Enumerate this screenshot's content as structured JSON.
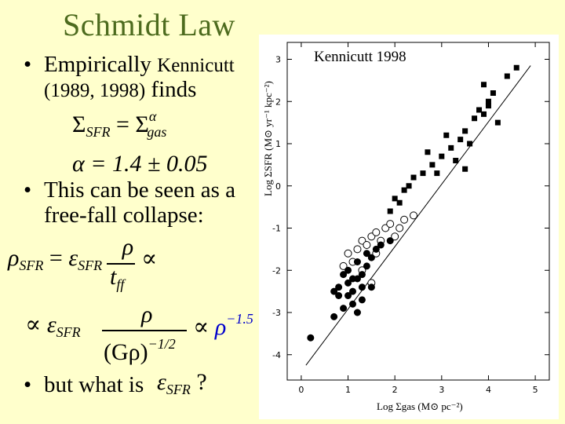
{
  "slide": {
    "title": "Schmidt Law",
    "bullet1_main": "Empirically",
    "bullet1_author": "Kennicutt",
    "bullet1_years": "(1989, 1998)",
    "bullet1_end": "finds",
    "bullet2_line1": "This can be seen as a",
    "bullet2_line2": "free-fall collapse:",
    "bullet3": "but what is",
    "bullet3_q": "?"
  },
  "equations": {
    "sigma": "Σ",
    "sfr": "SFR",
    "gas": "gas",
    "alpha": "α",
    "eq": "=",
    "alpha_value": "α = 1.4 ± 0.05",
    "rho": "ρ",
    "eps": "ε",
    "tff": "t",
    "ff": "ff",
    "propto": "∝",
    "g_rho": "(Gρ)",
    "neg_half": "−1/2",
    "neg_1_5": "−1.5"
  },
  "plot": {
    "label": "Kennicutt 1998",
    "y_axis_label": "Log ΣSFR (M⊙ yr⁻¹ kpc⁻²)",
    "x_axis_label": "Log Σgas (M⊙ pc⁻²)"
  },
  "chart_data": {
    "type": "scatter",
    "xlabel": "Log Σgas (M⊙ pc⁻²)",
    "ylabel": "Log ΣSFR (M⊙ yr⁻¹ kpc⁻²)",
    "xlim": [
      -0.3,
      5.3
    ],
    "ylim": [
      -4.6,
      3.4
    ],
    "x_ticks": [
      0,
      1,
      2,
      3,
      4,
      5
    ],
    "y_ticks": [
      3,
      2,
      1,
      0,
      -1,
      -2,
      -3,
      -4
    ],
    "fit_line": {
      "x": [
        0.1,
        4.9
      ],
      "y": [
        -4.25,
        2.85
      ]
    },
    "series": [
      {
        "marker": "filled-square",
        "values": [
          [
            1.9,
            -0.6
          ],
          [
            2.1,
            -0.4
          ],
          [
            2.2,
            -0.1
          ],
          [
            2.3,
            0.0
          ],
          [
            2.4,
            0.2
          ],
          [
            2.6,
            0.3
          ],
          [
            2.0,
            -0.3
          ],
          [
            2.8,
            0.5
          ],
          [
            3.0,
            0.7
          ],
          [
            2.9,
            0.3
          ],
          [
            3.2,
            0.9
          ],
          [
            3.4,
            1.1
          ],
          [
            3.5,
            1.3
          ],
          [
            3.7,
            1.6
          ],
          [
            3.3,
            0.6
          ],
          [
            3.6,
            1.0
          ],
          [
            3.8,
            1.8
          ],
          [
            3.9,
            1.7
          ],
          [
            4.0,
            1.9
          ],
          [
            4.1,
            2.2
          ],
          [
            4.2,
            1.5
          ],
          [
            3.9,
            2.4
          ],
          [
            4.0,
            2.0
          ],
          [
            4.4,
            2.6
          ],
          [
            4.6,
            2.8
          ],
          [
            3.1,
            1.2
          ],
          [
            2.7,
            0.8
          ],
          [
            3.5,
            0.4
          ]
        ]
      },
      {
        "marker": "open-circle",
        "values": [
          [
            1.0,
            -1.6
          ],
          [
            1.2,
            -1.5
          ],
          [
            1.3,
            -1.3
          ],
          [
            1.5,
            -1.2
          ],
          [
            1.6,
            -1.1
          ],
          [
            1.8,
            -1.0
          ],
          [
            1.9,
            -0.9
          ],
          [
            2.1,
            -1.0
          ],
          [
            1.4,
            -1.4
          ],
          [
            1.7,
            -1.3
          ],
          [
            2.0,
            -1.2
          ],
          [
            1.1,
            -1.8
          ],
          [
            1.3,
            -2.0
          ],
          [
            2.2,
            -0.8
          ],
          [
            0.9,
            -1.9
          ],
          [
            1.6,
            -1.6
          ],
          [
            2.4,
            -0.7
          ],
          [
            1.5,
            -2.3
          ]
        ]
      },
      {
        "marker": "filled-circle",
        "values": [
          [
            0.2,
            -3.6
          ],
          [
            0.7,
            -3.1
          ],
          [
            0.8,
            -2.6
          ],
          [
            0.9,
            -2.9
          ],
          [
            1.0,
            -2.3
          ],
          [
            1.0,
            -2.0
          ],
          [
            1.1,
            -2.5
          ],
          [
            1.2,
            -2.2
          ],
          [
            1.2,
            -1.8
          ],
          [
            1.3,
            -2.1
          ],
          [
            1.3,
            -2.7
          ],
          [
            1.4,
            -1.9
          ],
          [
            1.5,
            -2.4
          ],
          [
            0.9,
            -2.1
          ],
          [
            1.1,
            -2.8
          ],
          [
            1.4,
            -1.6
          ],
          [
            1.2,
            -3.0
          ],
          [
            1.5,
            -1.7
          ],
          [
            0.8,
            -2.4
          ],
          [
            1.0,
            -2.6
          ],
          [
            1.6,
            -1.5
          ],
          [
            1.7,
            -1.4
          ],
          [
            1.9,
            -1.3
          ],
          [
            1.1,
            -2.2
          ],
          [
            1.3,
            -2.4
          ],
          [
            0.7,
            -2.5
          ]
        ]
      }
    ]
  }
}
